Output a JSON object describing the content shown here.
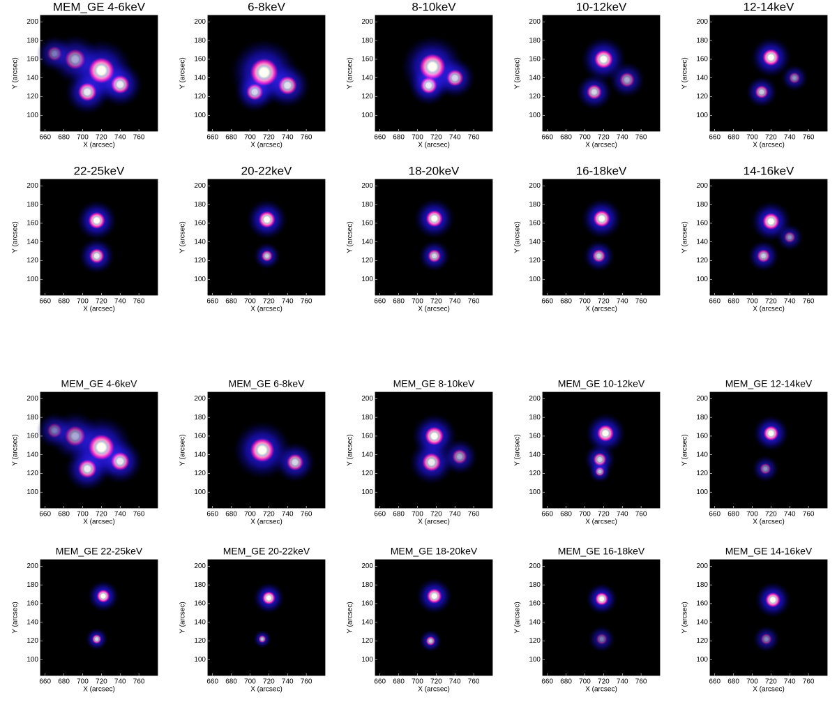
{
  "chart_data": [
    {
      "type": "image",
      "title": "MEM_GE 4-6keV",
      "xlabel": "X (arcsec)",
      "ylabel": "Y (arcsec)",
      "xlim": [
        655,
        780
      ],
      "ylim": [
        83,
        207
      ],
      "xticks": [
        660,
        680,
        700,
        720,
        740,
        760
      ],
      "yticks": [
        100,
        120,
        140,
        160,
        180,
        200
      ],
      "sources": [
        {
          "x": 720,
          "y": 148,
          "r": 14,
          "level": 1
        },
        {
          "x": 705,
          "y": 125,
          "r": 10,
          "level": 0.9
        },
        {
          "x": 740,
          "y": 133,
          "r": 10,
          "level": 0.9
        },
        {
          "x": 692,
          "y": 160,
          "r": 11,
          "level": 0.6
        },
        {
          "x": 670,
          "y": 166,
          "r": 8,
          "level": 0.4
        }
      ]
    },
    {
      "type": "image",
      "title": "6-8keV",
      "xlabel": "X (arcsec)",
      "ylabel": "Y (arcsec)",
      "xlim": [
        655,
        780
      ],
      "ylim": [
        83,
        207
      ],
      "xticks": [
        660,
        680,
        700,
        720,
        740,
        760
      ],
      "yticks": [
        100,
        120,
        140,
        160,
        180,
        200
      ],
      "sources": [
        {
          "x": 715,
          "y": 146,
          "r": 15,
          "level": 1
        },
        {
          "x": 740,
          "y": 132,
          "r": 10,
          "level": 0.85
        },
        {
          "x": 705,
          "y": 125,
          "r": 9,
          "level": 0.8
        }
      ]
    },
    {
      "type": "image",
      "title": "8-10keV",
      "xlabel": "X (arcsec)",
      "ylabel": "Y (arcsec)",
      "xlim": [
        655,
        780
      ],
      "ylim": [
        83,
        207
      ],
      "xticks": [
        660,
        680,
        700,
        720,
        740,
        760
      ],
      "yticks": [
        100,
        120,
        140,
        160,
        180,
        200
      ],
      "sources": [
        {
          "x": 716,
          "y": 152,
          "r": 14,
          "level": 1
        },
        {
          "x": 740,
          "y": 140,
          "r": 9,
          "level": 0.8
        },
        {
          "x": 712,
          "y": 132,
          "r": 9,
          "level": 0.9
        }
      ]
    },
    {
      "type": "image",
      "title": "10-12keV",
      "xlabel": "X (arcsec)",
      "ylabel": "Y (arcsec)",
      "xlim": [
        655,
        780
      ],
      "ylim": [
        83,
        207
      ],
      "xticks": [
        660,
        680,
        700,
        720,
        740,
        760
      ],
      "yticks": [
        100,
        120,
        140,
        160,
        180,
        200
      ],
      "sources": [
        {
          "x": 720,
          "y": 160,
          "r": 10,
          "level": 1
        },
        {
          "x": 710,
          "y": 125,
          "r": 8,
          "level": 0.8
        },
        {
          "x": 745,
          "y": 138,
          "r": 8,
          "level": 0.6
        }
      ]
    },
    {
      "type": "image",
      "title": "12-14keV",
      "xlabel": "X (arcsec)",
      "ylabel": "Y (arcsec)",
      "xlim": [
        655,
        780
      ],
      "ylim": [
        83,
        207
      ],
      "xticks": [
        660,
        680,
        700,
        720,
        740,
        760
      ],
      "yticks": [
        100,
        120,
        140,
        160,
        180,
        200
      ],
      "sources": [
        {
          "x": 720,
          "y": 162,
          "r": 9,
          "level": 1
        },
        {
          "x": 710,
          "y": 125,
          "r": 7,
          "level": 0.75
        },
        {
          "x": 745,
          "y": 140,
          "r": 6,
          "level": 0.5
        }
      ]
    },
    {
      "type": "image",
      "title": "22-25keV",
      "xlabel": "X (arcsec)",
      "ylabel": "Y (arcsec)",
      "xlim": [
        655,
        780
      ],
      "ylim": [
        83,
        207
      ],
      "xticks": [
        660,
        680,
        700,
        720,
        740,
        760
      ],
      "yticks": [
        100,
        120,
        140,
        160,
        180,
        200
      ],
      "sources": [
        {
          "x": 715,
          "y": 163,
          "r": 9,
          "level": 1
        },
        {
          "x": 715,
          "y": 125,
          "r": 8,
          "level": 0.9
        }
      ]
    },
    {
      "type": "image",
      "title": "20-22keV",
      "xlabel": "X (arcsec)",
      "ylabel": "Y (arcsec)",
      "xlim": [
        655,
        780
      ],
      "ylim": [
        83,
        207
      ],
      "xticks": [
        660,
        680,
        700,
        720,
        740,
        760
      ],
      "yticks": [
        100,
        120,
        140,
        160,
        180,
        200
      ],
      "sources": [
        {
          "x": 718,
          "y": 164,
          "r": 9,
          "level": 1
        },
        {
          "x": 718,
          "y": 125,
          "r": 6,
          "level": 0.75
        }
      ]
    },
    {
      "type": "image",
      "title": "18-20keV",
      "xlabel": "X (arcsec)",
      "ylabel": "Y (arcsec)",
      "xlim": [
        655,
        780
      ],
      "ylim": [
        83,
        207
      ],
      "xticks": [
        660,
        680,
        700,
        720,
        740,
        760
      ],
      "yticks": [
        100,
        120,
        140,
        160,
        180,
        200
      ],
      "sources": [
        {
          "x": 718,
          "y": 165,
          "r": 9,
          "level": 1
        },
        {
          "x": 718,
          "y": 125,
          "r": 7,
          "level": 0.8
        }
      ]
    },
    {
      "type": "image",
      "title": "16-18keV",
      "xlabel": "X (arcsec)",
      "ylabel": "Y (arcsec)",
      "xlim": [
        655,
        780
      ],
      "ylim": [
        83,
        207
      ],
      "xticks": [
        660,
        680,
        700,
        720,
        740,
        760
      ],
      "yticks": [
        100,
        120,
        140,
        160,
        180,
        200
      ],
      "sources": [
        {
          "x": 718,
          "y": 165,
          "r": 9,
          "level": 1
        },
        {
          "x": 715,
          "y": 125,
          "r": 7,
          "level": 0.75
        }
      ]
    },
    {
      "type": "image",
      "title": "14-16keV",
      "xlabel": "X (arcsec)",
      "ylabel": "Y (arcsec)",
      "xlim": [
        655,
        780
      ],
      "ylim": [
        83,
        207
      ],
      "xticks": [
        660,
        680,
        700,
        720,
        740,
        760
      ],
      "yticks": [
        100,
        120,
        140,
        160,
        180,
        200
      ],
      "sources": [
        {
          "x": 720,
          "y": 162,
          "r": 9,
          "level": 1
        },
        {
          "x": 712,
          "y": 125,
          "r": 7,
          "level": 0.75
        },
        {
          "x": 740,
          "y": 145,
          "r": 6,
          "level": 0.5
        }
      ]
    },
    {
      "type": "image",
      "title": "MEM_GE 4-6keV",
      "xlabel": "X (arcsec)",
      "ylabel": "Y (arcsec)",
      "xlim": [
        655,
        780
      ],
      "ylim": [
        83,
        207
      ],
      "xticks": [
        660,
        680,
        700,
        720,
        740,
        760
      ],
      "yticks": [
        100,
        120,
        140,
        160,
        180,
        200
      ],
      "sources": [
        {
          "x": 720,
          "y": 148,
          "r": 14,
          "level": 1
        },
        {
          "x": 705,
          "y": 125,
          "r": 10,
          "level": 0.9
        },
        {
          "x": 740,
          "y": 133,
          "r": 10,
          "level": 0.9
        },
        {
          "x": 692,
          "y": 160,
          "r": 11,
          "level": 0.6
        },
        {
          "x": 670,
          "y": 166,
          "r": 8,
          "level": 0.4
        }
      ]
    },
    {
      "type": "image",
      "title": "MEM_GE 6-8keV",
      "xlabel": "X (arcsec)",
      "ylabel": "Y (arcsec)",
      "xlim": [
        655,
        780
      ],
      "ylim": [
        83,
        207
      ],
      "xticks": [
        660,
        680,
        700,
        720,
        740,
        760
      ],
      "yticks": [
        100,
        120,
        140,
        160,
        180,
        200
      ],
      "sources": [
        {
          "x": 713,
          "y": 145,
          "r": 13,
          "level": 1
        },
        {
          "x": 748,
          "y": 132,
          "r": 9,
          "level": 0.8
        }
      ]
    },
    {
      "type": "image",
      "title": "MEM_GE 8-10keV",
      "xlabel": "X (arcsec)",
      "ylabel": "Y (arcsec)",
      "xlim": [
        655,
        780
      ],
      "ylim": [
        83,
        207
      ],
      "xticks": [
        660,
        680,
        700,
        720,
        740,
        760
      ],
      "yticks": [
        100,
        120,
        140,
        160,
        180,
        200
      ],
      "sources": [
        {
          "x": 718,
          "y": 160,
          "r": 10,
          "level": 1
        },
        {
          "x": 715,
          "y": 132,
          "r": 10,
          "level": 0.9
        },
        {
          "x": 745,
          "y": 138,
          "r": 8,
          "level": 0.6
        }
      ]
    },
    {
      "type": "image",
      "title": "MEM_GE 10-12keV",
      "xlabel": "X (arcsec)",
      "ylabel": "Y (arcsec)",
      "xlim": [
        655,
        780
      ],
      "ylim": [
        83,
        207
      ],
      "xticks": [
        660,
        680,
        700,
        720,
        740,
        760
      ],
      "yticks": [
        100,
        120,
        140,
        160,
        180,
        200
      ],
      "sources": [
        {
          "x": 722,
          "y": 163,
          "r": 9,
          "level": 1
        },
        {
          "x": 716,
          "y": 135,
          "r": 7,
          "level": 0.8
        },
        {
          "x": 716,
          "y": 122,
          "r": 5,
          "level": 0.7
        }
      ]
    },
    {
      "type": "image",
      "title": "MEM_GE 12-14keV",
      "xlabel": "X (arcsec)",
      "ylabel": "Y (arcsec)",
      "xlim": [
        655,
        780
      ],
      "ylim": [
        83,
        207
      ],
      "xticks": [
        660,
        680,
        700,
        720,
        740,
        760
      ],
      "yticks": [
        100,
        120,
        140,
        160,
        180,
        200
      ],
      "sources": [
        {
          "x": 720,
          "y": 163,
          "r": 8,
          "level": 1
        },
        {
          "x": 714,
          "y": 125,
          "r": 6,
          "level": 0.5
        }
      ]
    },
    {
      "type": "image",
      "title": "MEM_GE 22-25keV",
      "xlabel": "X (arcsec)",
      "ylabel": "Y (arcsec)",
      "xlim": [
        655,
        780
      ],
      "ylim": [
        83,
        207
      ],
      "xticks": [
        660,
        680,
        700,
        720,
        740,
        760
      ],
      "yticks": [
        100,
        120,
        140,
        160,
        180,
        200
      ],
      "sources": [
        {
          "x": 722,
          "y": 168,
          "r": 7,
          "level": 1
        },
        {
          "x": 715,
          "y": 122,
          "r": 5,
          "level": 0.8
        }
      ]
    },
    {
      "type": "image",
      "title": "MEM_GE 20-22keV",
      "xlabel": "X (arcsec)",
      "ylabel": "Y (arcsec)",
      "xlim": [
        655,
        780
      ],
      "ylim": [
        83,
        207
      ],
      "xticks": [
        660,
        680,
        700,
        720,
        740,
        760
      ],
      "yticks": [
        100,
        120,
        140,
        160,
        180,
        200
      ],
      "sources": [
        {
          "x": 720,
          "y": 166,
          "r": 7,
          "level": 1
        },
        {
          "x": 713,
          "y": 122,
          "r": 4,
          "level": 0.7
        }
      ]
    },
    {
      "type": "image",
      "title": "MEM_GE 18-20keV",
      "xlabel": "X (arcsec)",
      "ylabel": "Y (arcsec)",
      "xlim": [
        655,
        780
      ],
      "ylim": [
        83,
        207
      ],
      "xticks": [
        660,
        680,
        700,
        720,
        740,
        760
      ],
      "yticks": [
        100,
        120,
        140,
        160,
        180,
        200
      ],
      "sources": [
        {
          "x": 718,
          "y": 168,
          "r": 8,
          "level": 1
        },
        {
          "x": 714,
          "y": 120,
          "r": 5,
          "level": 0.75
        }
      ]
    },
    {
      "type": "image",
      "title": "MEM_GE 16-18keV",
      "xlabel": "X (arcsec)",
      "ylabel": "Y (arcsec)",
      "xlim": [
        655,
        780
      ],
      "ylim": [
        83,
        207
      ],
      "xticks": [
        660,
        680,
        700,
        720,
        740,
        760
      ],
      "yticks": [
        100,
        120,
        140,
        160,
        180,
        200
      ],
      "sources": [
        {
          "x": 718,
          "y": 165,
          "r": 7,
          "level": 1
        },
        {
          "x": 718,
          "y": 122,
          "r": 6,
          "level": 0.4
        }
      ]
    },
    {
      "type": "image",
      "title": "MEM_GE 14-16keV",
      "xlabel": "X (arcsec)",
      "ylabel": "Y (arcsec)",
      "xlim": [
        655,
        780
      ],
      "ylim": [
        83,
        207
      ],
      "xticks": [
        660,
        680,
        700,
        720,
        740,
        760
      ],
      "yticks": [
        100,
        120,
        140,
        160,
        180,
        200
      ],
      "sources": [
        {
          "x": 722,
          "y": 164,
          "r": 8,
          "level": 1
        },
        {
          "x": 715,
          "y": 122,
          "r": 6,
          "level": 0.45
        }
      ]
    }
  ]
}
